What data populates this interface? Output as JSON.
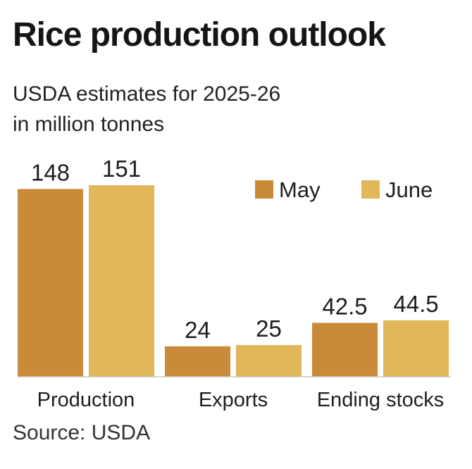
{
  "title": "Rice production outlook",
  "subtitle_line1": "USDA estimates for 2025-26",
  "subtitle_line2": "in million tonnes",
  "source": "Source: USDA",
  "colors": {
    "may": "#c98a3a",
    "june": "#e2b75a",
    "baseline": "#c7c7c7"
  },
  "chart_data": {
    "type": "bar",
    "categories": [
      "Production",
      "Exports",
      "Ending stocks"
    ],
    "series": [
      {
        "name": "May",
        "values": [
          148,
          24,
          42.5
        ],
        "labels": [
          "148",
          "24",
          "42.5"
        ]
      },
      {
        "name": "June",
        "values": [
          151,
          25,
          44.5
        ],
        "labels": [
          "151",
          "25",
          "44.5"
        ]
      }
    ],
    "title": "Rice production outlook",
    "subtitle": "USDA estimates for 2025-26 in million tonnes",
    "ylim": [
      0,
      151
    ],
    "grid": false,
    "legend": "top-right"
  }
}
